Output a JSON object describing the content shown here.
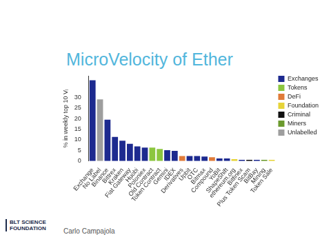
{
  "chart_data": {
    "type": "bar",
    "title": "MicroVelocity of Ether",
    "y_label": "% in weekly top 10 Vᵢ",
    "categories": [
      "Exchange",
      "No Label",
      "Binance",
      "Bittrex",
      "Kraken",
      "Fiat Gateway",
      "Huobi",
      "Poloniex",
      "Old Contract",
      "Token Contract",
      "Gemini",
      "IDEX",
      "Derivatives",
      "Upbit",
      "OTC",
      "Bitmax",
      "Compound",
      "YoBit",
      "ShapeShift",
      "ethereum.org",
      "Bitfinex",
      "Plus Token Scam",
      "BitBay",
      "Mining",
      "Token Sale"
    ],
    "series": [
      {
        "name": "Exchanges",
        "color": "#1d2a8f",
        "values": [
          38,
          null,
          19.5,
          11.4,
          9.6,
          8.1,
          6.9,
          6.3,
          null,
          null,
          5.1,
          4.8,
          null,
          2.4,
          2.4,
          2.1,
          null,
          1.2,
          1.2,
          null,
          0.6,
          null,
          0.6,
          null,
          null
        ]
      },
      {
        "name": "Tokens",
        "color": "#8cc63f",
        "values": [
          null,
          null,
          null,
          null,
          null,
          null,
          null,
          null,
          6.3,
          5.7,
          null,
          null,
          null,
          null,
          null,
          null,
          null,
          null,
          null,
          null,
          null,
          null,
          null,
          null,
          null
        ]
      },
      {
        "name": "DeFi",
        "color": "#e07b39",
        "values": [
          null,
          null,
          null,
          null,
          null,
          null,
          null,
          null,
          null,
          null,
          null,
          null,
          2.4,
          null,
          null,
          null,
          1.8,
          null,
          null,
          null,
          null,
          null,
          null,
          null,
          null
        ]
      },
      {
        "name": "Foundation",
        "color": "#e6d43a",
        "values": [
          null,
          null,
          null,
          null,
          null,
          null,
          null,
          null,
          null,
          null,
          null,
          null,
          null,
          null,
          null,
          null,
          null,
          null,
          null,
          0.9,
          null,
          null,
          null,
          null,
          0.6
        ]
      },
      {
        "name": "Criminal",
        "color": "#111111",
        "values": [
          null,
          null,
          null,
          null,
          null,
          null,
          null,
          null,
          null,
          null,
          null,
          null,
          null,
          null,
          null,
          null,
          null,
          null,
          null,
          null,
          null,
          0.6,
          null,
          null,
          null
        ]
      },
      {
        "name": "Miners",
        "color": "#6b9a2e",
        "values": [
          null,
          null,
          null,
          null,
          null,
          null,
          null,
          null,
          null,
          null,
          null,
          null,
          null,
          null,
          null,
          null,
          null,
          null,
          null,
          null,
          null,
          null,
          null,
          0.6,
          null
        ]
      },
      {
        "name": "Unlabelled",
        "color": "#9e9e9e",
        "values": [
          null,
          29,
          null,
          null,
          null,
          null,
          null,
          null,
          null,
          null,
          null,
          null,
          null,
          null,
          null,
          null,
          null,
          null,
          null,
          null,
          null,
          null,
          null,
          null,
          null
        ]
      }
    ],
    "ylim": [
      0,
      40
    ],
    "yticks": [
      0,
      5,
      10,
      15,
      20,
      25,
      30
    ],
    "grid": false,
    "legend": "top right"
  },
  "slide": {
    "logo": "BLT SCIENCE FOUNDATION",
    "presenter": "Carlo Campajola"
  }
}
